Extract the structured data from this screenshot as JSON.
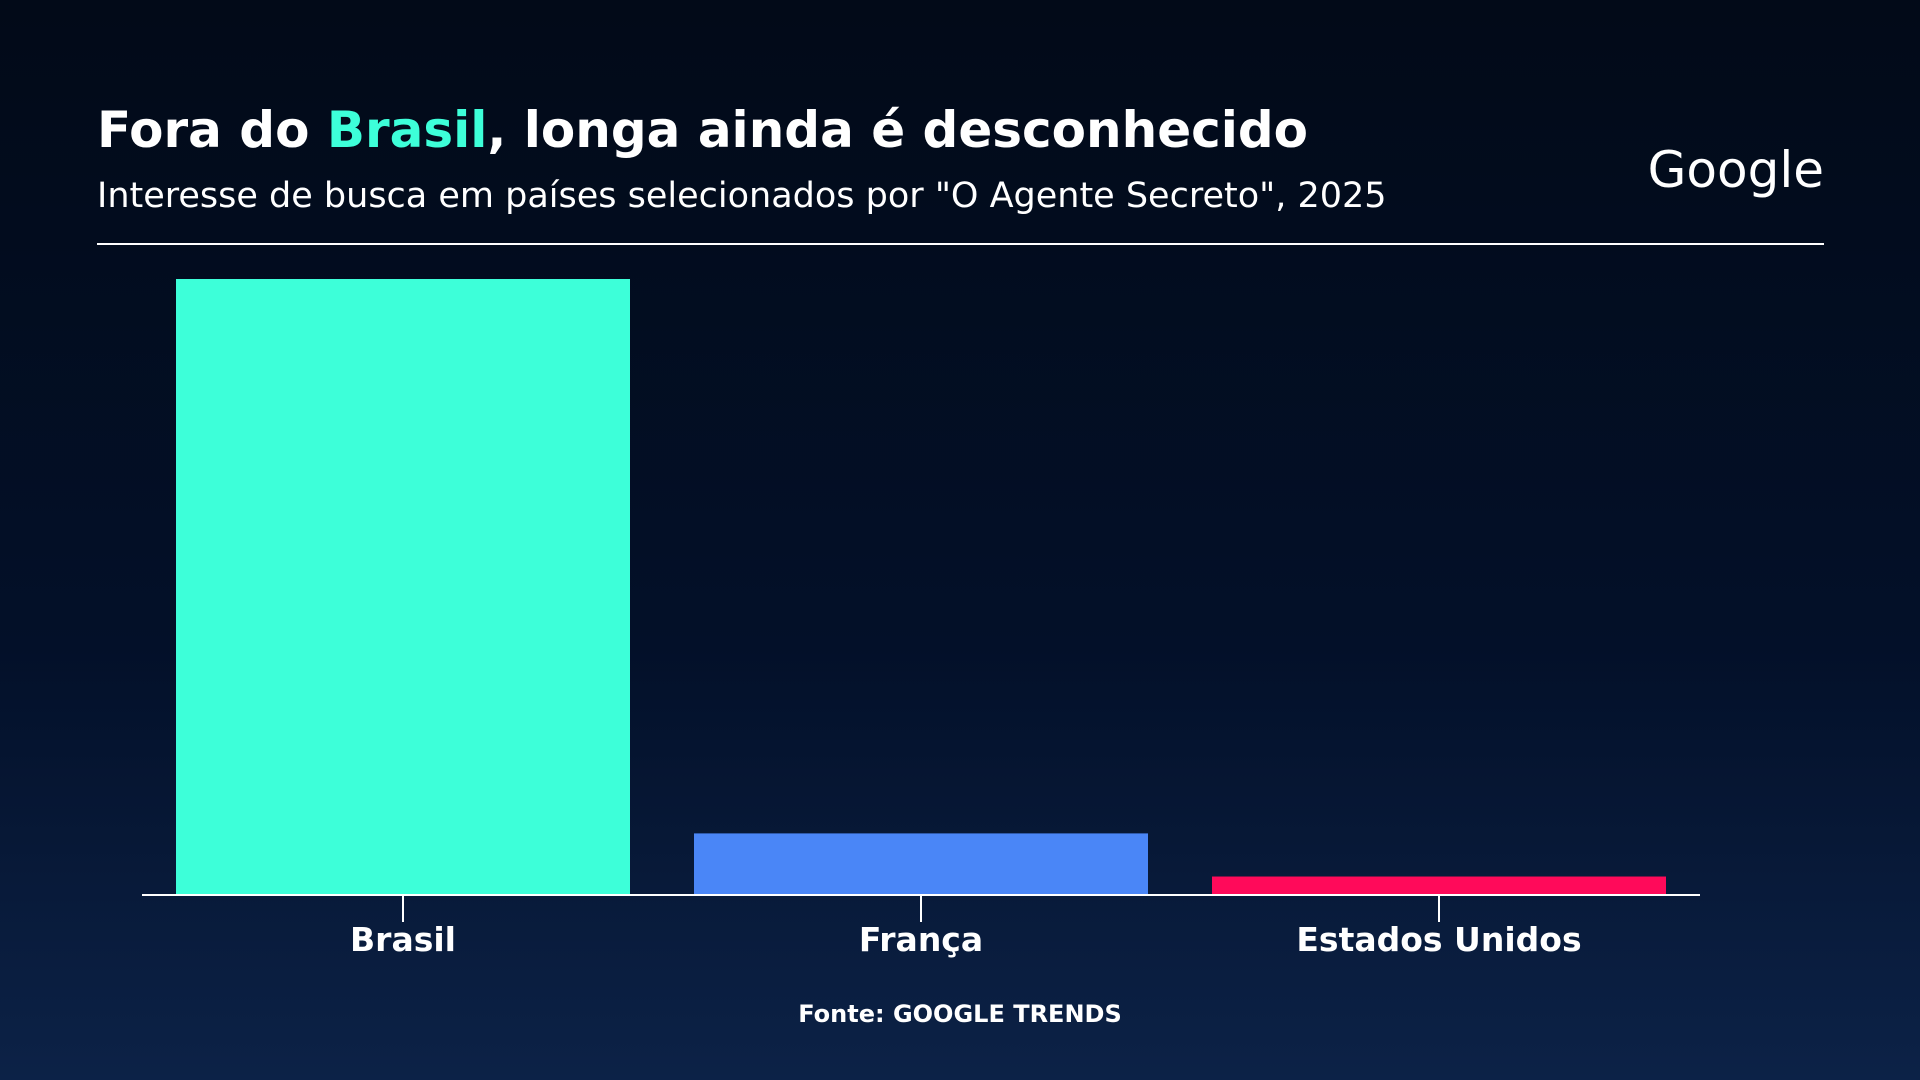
{
  "chart_data": {
    "type": "bar",
    "title": "Fora do Brasil, longa ainda é desconhecido",
    "title_highlight": "Brasil",
    "title_highlight_color": "#3dffd9",
    "subtitle": "Interesse de busca em países selecionados por \"O Agente Secreto\", 2025",
    "logo": "Google",
    "source": "Fonte: GOOGLE TRENDS",
    "categories": [
      "Brasil",
      "França",
      "Estados Unidos"
    ],
    "values": [
      100,
      10,
      3
    ],
    "colors": [
      "#3dffd9",
      "#4a86f7",
      "#ff0a5a"
    ]
  }
}
